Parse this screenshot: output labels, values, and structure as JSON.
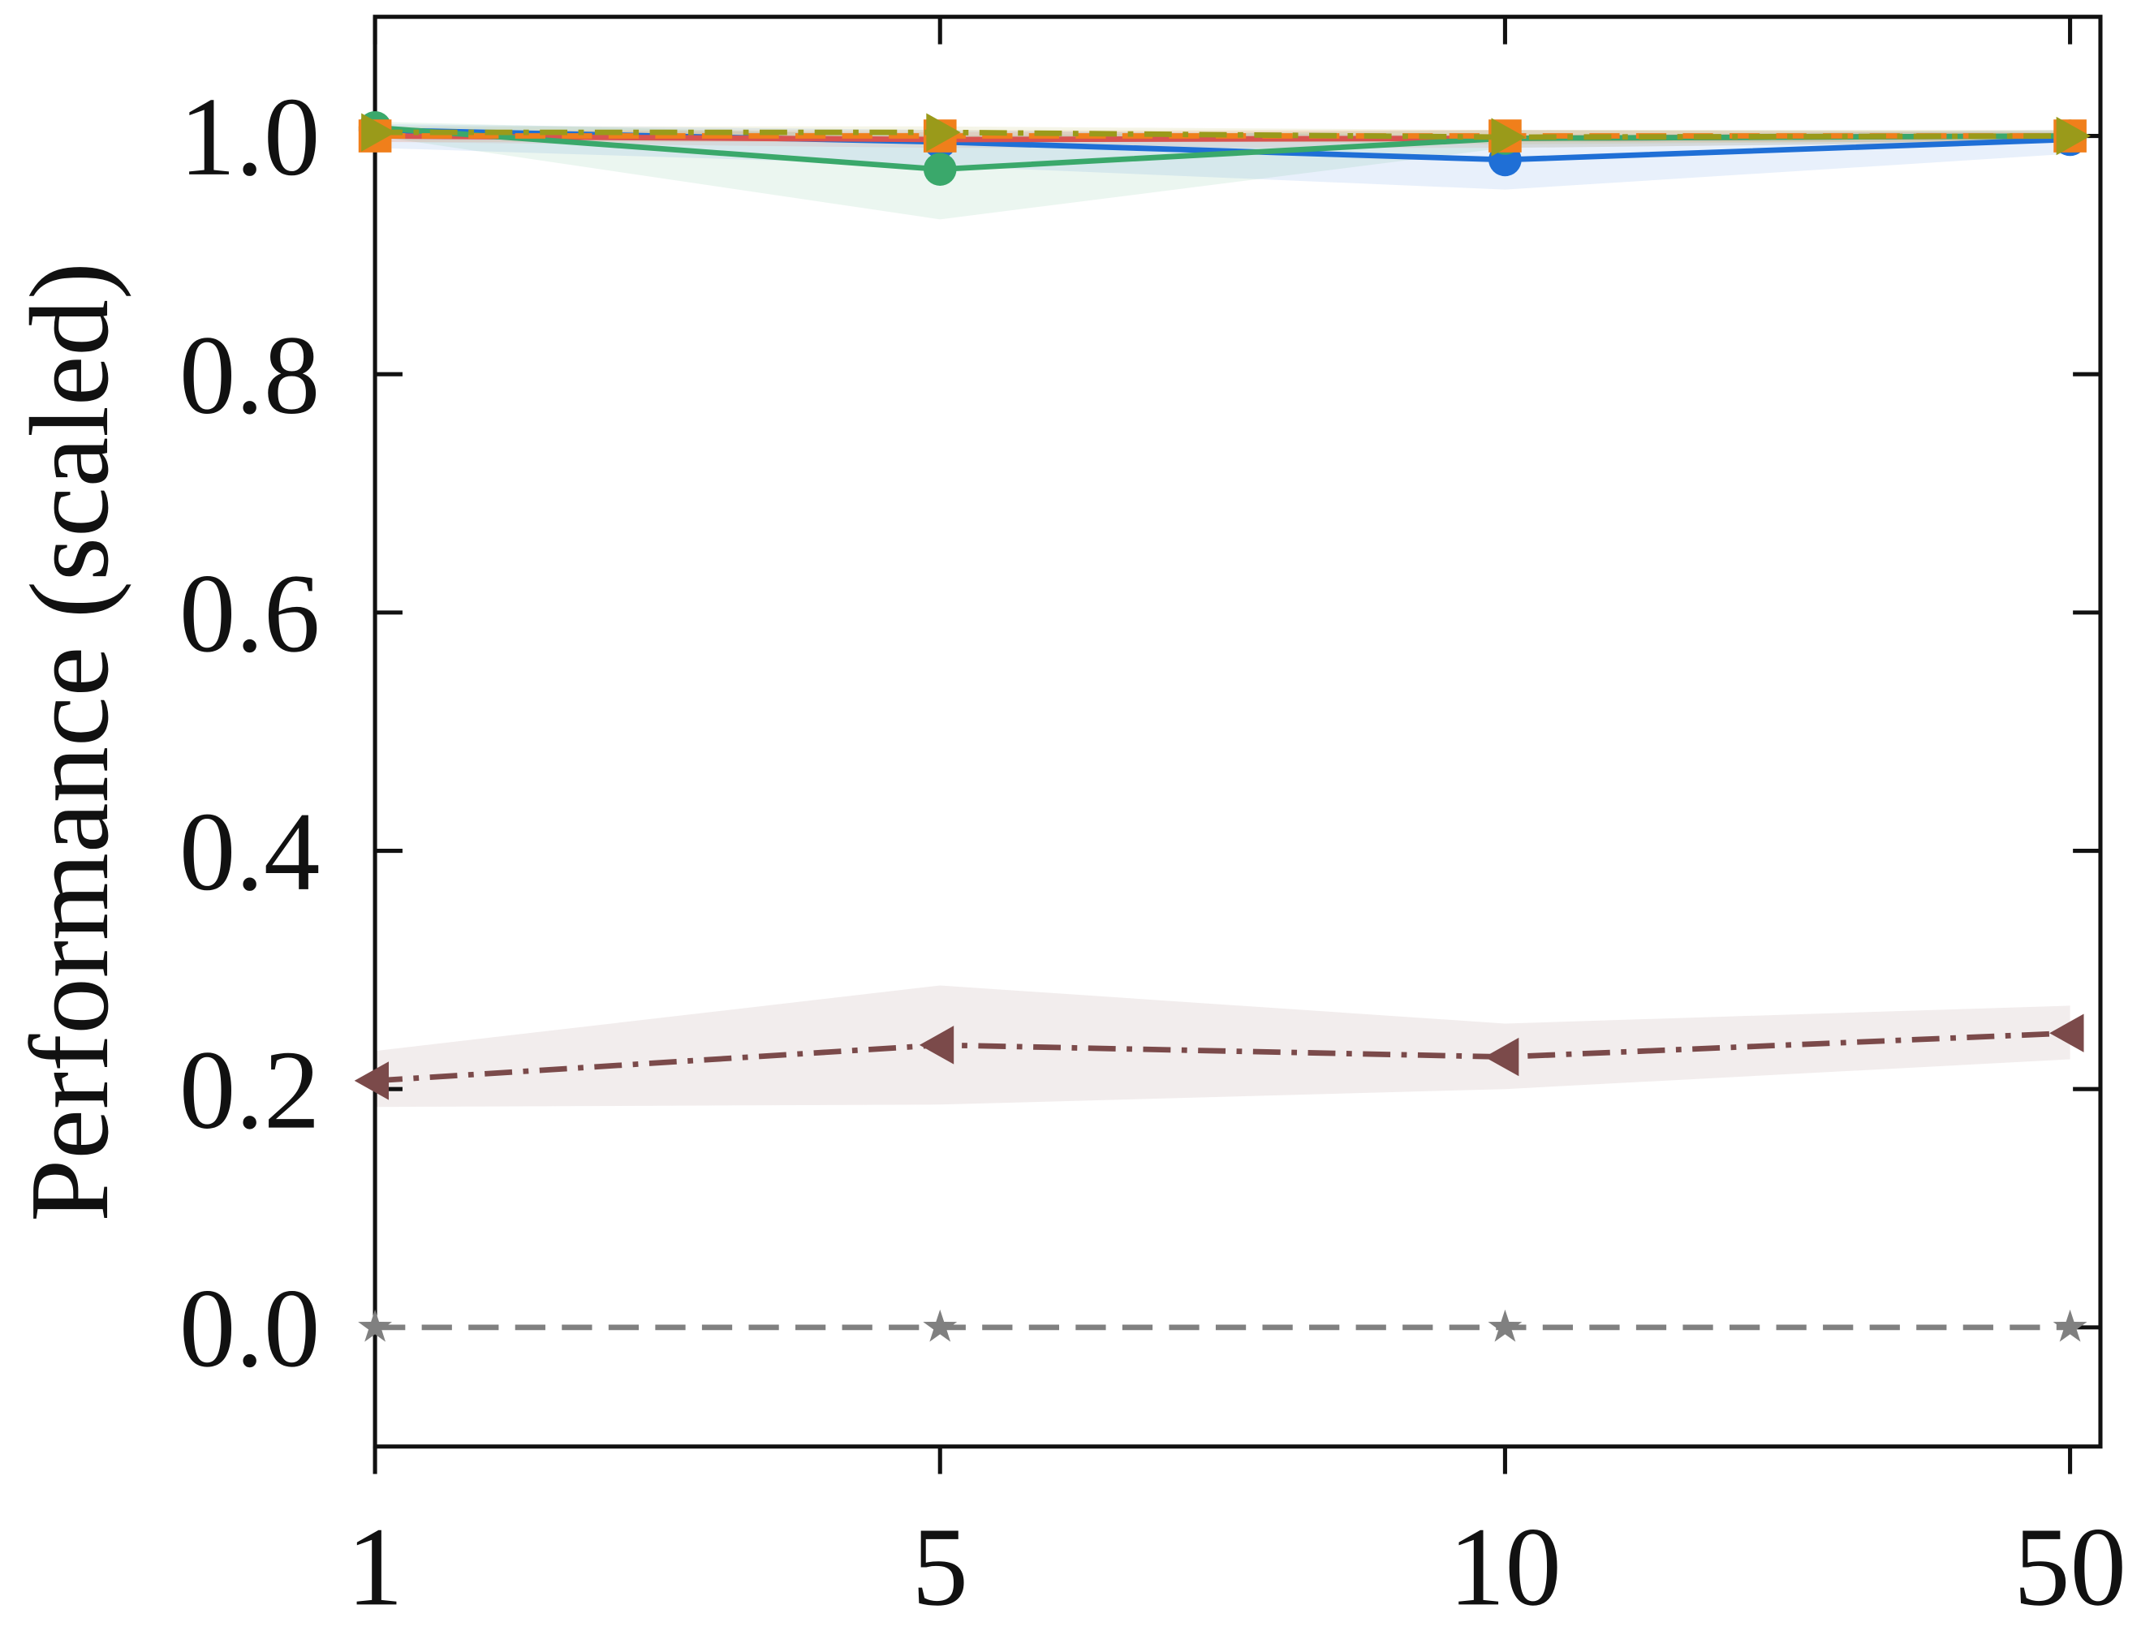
{
  "chart_data": {
    "type": "line",
    "y_label": "Performance (scaled)",
    "categories": [
      "1",
      "5",
      "10",
      "50"
    ],
    "ylim": [
      -0.1,
      1.1
    ],
    "yticks": [
      {
        "value": 0,
        "label": "0.0"
      },
      {
        "value": 0.2,
        "label": "0.2"
      },
      {
        "value": 0.4,
        "label": "0.4"
      },
      {
        "value": 0.6,
        "label": "0.6"
      },
      {
        "value": 0.8,
        "label": "0.8"
      },
      {
        "value": 1,
        "label": "1.0"
      }
    ],
    "series": [
      {
        "color": "#1f6fd6",
        "marker": "circle",
        "dash": "solid",
        "values": [
          1.005,
          0.995,
          0.98,
          0.997
        ],
        "lower": [
          0.99,
          0.975,
          0.955,
          0.985
        ],
        "upper": [
          1.01,
          1.005,
          1.0,
          1.005
        ]
      },
      {
        "color": "#d9534f",
        "marker": "none",
        "dash": "solid",
        "values": [
          1.0,
          0.997,
          0.998,
          1.0
        ],
        "lower": [
          0.995,
          0.99,
          0.99,
          0.995
        ],
        "upper": [
          1.005,
          1.003,
          1.005,
          1.003
        ]
      },
      {
        "color": "#3aa86b",
        "marker": "circle",
        "dash": "solid",
        "values": [
          1.007,
          0.972,
          0.998,
          1.0
        ],
        "lower": [
          1.0,
          0.93,
          0.99,
          0.995
        ],
        "upper": [
          1.012,
          1.0,
          1.005,
          1.005
        ]
      },
      {
        "color": "#f07f1b",
        "marker": "square",
        "dash": "dashed",
        "values": [
          1.0,
          1.0,
          1.0,
          1.0
        ],
        "lower": [
          0.995,
          0.995,
          0.995,
          0.995
        ],
        "upper": [
          1.005,
          1.005,
          1.005,
          1.005
        ]
      },
      {
        "color": "#9a9a1a",
        "marker": "triangle-right",
        "dash": "dashdot",
        "values": [
          1.003,
          1.003,
          0.999,
          1.0
        ],
        "lower": [
          0.998,
          0.998,
          0.993,
          0.996
        ],
        "upper": [
          1.008,
          1.008,
          1.005,
          1.004
        ]
      },
      {
        "color": "#7b4a4a",
        "marker": "triangle-left",
        "dash": "dashdot",
        "values": [
          0.207,
          0.237,
          0.227,
          0.247
        ],
        "lower": [
          0.185,
          0.187,
          0.2,
          0.225
        ],
        "upper": [
          0.232,
          0.287,
          0.255,
          0.27
        ]
      },
      {
        "color": "#808080",
        "marker": "star",
        "dash": "dashed",
        "values": [
          0,
          0,
          0,
          0
        ]
      }
    ]
  }
}
